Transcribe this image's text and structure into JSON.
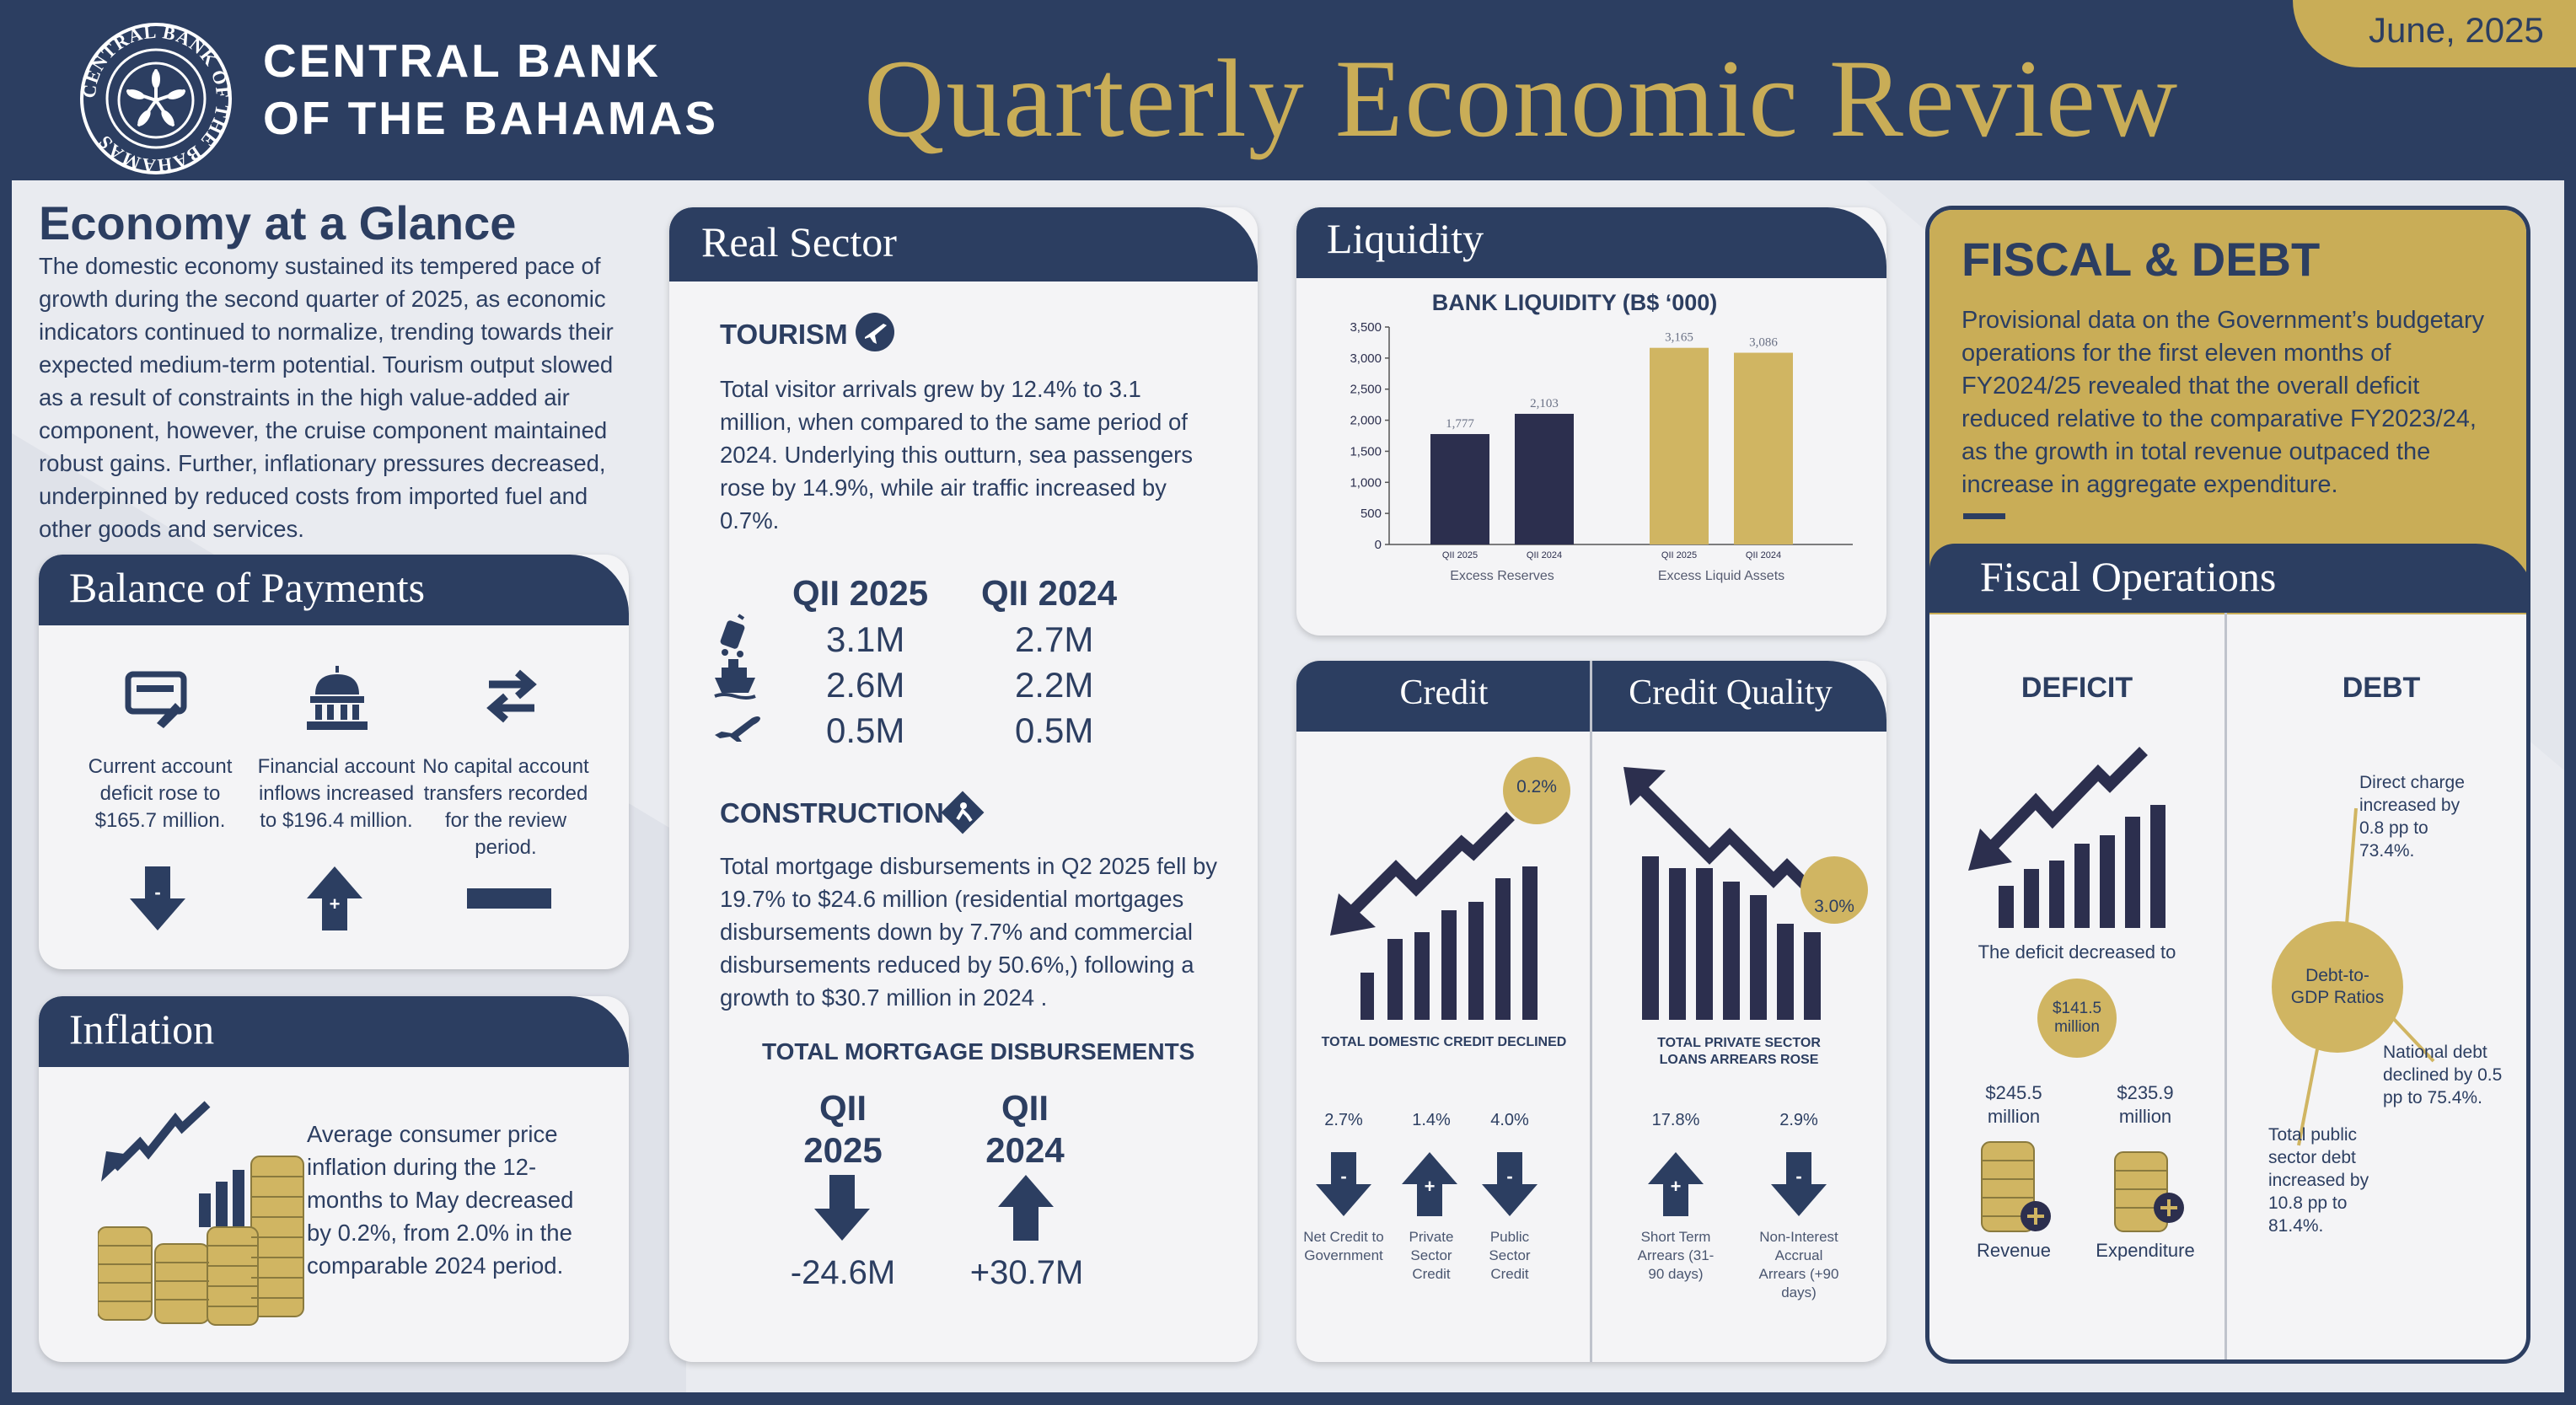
{
  "header": {
    "bank_name_line1": "CENTRAL BANK",
    "bank_name_line2": "OF THE BAHAMAS",
    "seal_text": "CENTRAL BANK OF THE BAHAMAS",
    "title": "Quarterly Economic Review",
    "date": "June, 2025"
  },
  "glance": {
    "title": "Economy at a Glance",
    "body": "The domestic economy sustained its tempered pace of growth during the second quarter of 2025, as economic indicators continued to normalize, trending towards their expected medium-term potential. Tourism output slowed as a result of constraints in the high value-added air component, however, the cruise component maintained robust gains. Further, inflationary pressures decreased, underpinned by reduced costs from imported fuel and other goods and services."
  },
  "bop": {
    "title": "Balance of Payments",
    "items": [
      {
        "label": "Current account deficit rose to $165.7 million.",
        "sign": "-",
        "direction": "down"
      },
      {
        "label": "Financial account inflows increased to $196.4 million.",
        "sign": "+",
        "direction": "up"
      },
      {
        "label": "No capital account transfers recorded for the review period.",
        "sign": "",
        "direction": "flat"
      }
    ]
  },
  "inflation": {
    "title": "Inflation",
    "body": "Average consumer price inflation during the 12-months to May decreased by 0.2%, from 2.0% in the comparable 2024 period."
  },
  "real_sector": {
    "title": "Real Sector",
    "tourism": {
      "heading": "TOURISM",
      "body": "Total visitor arrivals grew by 12.4% to 3.1 million, when compared to the same period of 2024. Underlying this outturn, sea passengers rose by 14.9%, while air traffic increased by 0.7%.",
      "col_2025": "QII 2025",
      "col_2024": "QII 2024",
      "rows": [
        {
          "icon": "luggage-icon",
          "v2025": "3.1M",
          "v2024": "2.7M"
        },
        {
          "icon": "cruise-ship-icon",
          "v2025": "2.6M",
          "v2024": "2.2M"
        },
        {
          "icon": "airplane-icon",
          "v2025": "0.5M",
          "v2024": "0.5M"
        }
      ]
    },
    "construction": {
      "heading": "CONSTRUCTION",
      "body": "Total mortgage disbursements in Q2 2025 fell by 19.7% to $24.6 million (residential mortgages disbursements down by 7.7% and commercial disbursements reduced by 50.6%,) following a growth to $30.7 million in 2024 .",
      "subheading": "TOTAL MORTGAGE DISBURSEMENTS",
      "col1_line1": "QII",
      "col1_line2": "2025",
      "col2_line1": "QII",
      "col2_line2": "2024",
      "val1": "-24.6M",
      "val2": "+30.7M"
    }
  },
  "liquidity": {
    "title": "Liquidity",
    "chart_data": {
      "type": "bar",
      "title": "BANK LIQUIDITY (B$ ‘000)",
      "groups": [
        "Excess Reserves",
        "Excess Liquid Assets"
      ],
      "categories": [
        "QII 2025",
        "QII 2024",
        "QII 2025",
        "QII 2024"
      ],
      "values": [
        1777,
        2103,
        3165,
        3086
      ],
      "value_labels": [
        "1,777",
        "2,103",
        "3,165",
        "3,086"
      ],
      "colors": [
        "#2c2f4e",
        "#2c2f4e",
        "#d0b562",
        "#d0b562"
      ],
      "ylim": [
        0,
        3500
      ],
      "yticks": [
        "0",
        "500",
        "1,000",
        "1,500",
        "2,000",
        "2,500",
        "3,000",
        "3,500"
      ]
    }
  },
  "credit": {
    "title": "Credit",
    "badge": "0.2%",
    "caption": "TOTAL DOMESTIC CREDIT DECLINED",
    "items": [
      {
        "pct": "2.7%",
        "sign": "-",
        "direction": "down",
        "label": "Net Credit to Government"
      },
      {
        "pct": "1.4%",
        "sign": "+",
        "direction": "up",
        "label": "Private Sector Credit"
      },
      {
        "pct": "4.0%",
        "sign": "-",
        "direction": "down",
        "label": "Public Sector Credit"
      }
    ]
  },
  "credit_quality": {
    "title": "Credit Quality",
    "badge": "3.0%",
    "caption_line1": "TOTAL PRIVATE SECTOR",
    "caption_line2": "LOANS ARREARS ROSE",
    "items": [
      {
        "pct": "17.8%",
        "sign": "+",
        "direction": "up",
        "label": "Short Term Arrears (31-90 days)"
      },
      {
        "pct": "2.9%",
        "sign": "-",
        "direction": "down",
        "label": "Non-Interest Accrual Arrears (+90 days)"
      }
    ]
  },
  "fiscal": {
    "title": "FISCAL & DEBT",
    "body": "Provisional data on the Government’s budgetary operations for the first eleven months of FY2024/25 revealed that the overall deficit reduced relative to the comparative FY2023/24, as the growth in total revenue outpaced the increase in aggregate expenditure.",
    "ops_title": "Fiscal Operations",
    "deficit": {
      "heading": "DEFICIT",
      "text": "The deficit decreased to",
      "badge_line1": "$141.5",
      "badge_line2": "million",
      "revenue_value": "$245.5 million",
      "expenditure_value": "$235.9 million",
      "revenue_label": "Revenue",
      "expenditure_label": "Expenditure"
    },
    "debt": {
      "heading": "DEBT",
      "center": "Debt-to-GDP Ratios",
      "direct_charge": "Direct charge increased by 0.8 pp to 73.4%.",
      "national_debt": "National debt declined by 0.5 pp to 75.4%.",
      "public_sector": "Total public sector debt increased by 10.8 pp to 81.4%."
    }
  }
}
